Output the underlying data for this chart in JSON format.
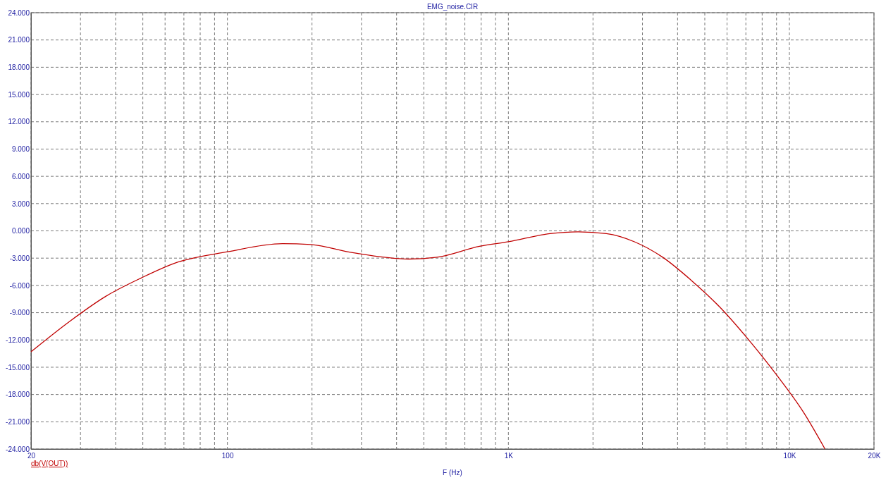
{
  "chart_data": {
    "type": "line",
    "title": "EMG_noise.CIR",
    "xlabel": "F (Hz)",
    "log": "x",
    "grid": true,
    "line_style": "solid",
    "marker": "none",
    "legend": "bottom left",
    "xlim": [
      20,
      20000
    ],
    "ylim": [
      -24,
      24
    ],
    "xticks": [
      20,
      {
        "value": 30,
        "label": null
      },
      {
        "value": 40,
        "label": null
      },
      {
        "value": 50,
        "label": null
      },
      {
        "value": 60,
        "label": null
      },
      {
        "value": 70,
        "label": null
      },
      {
        "value": 80,
        "label": null
      },
      {
        "value": 90,
        "label": null
      },
      100,
      {
        "value": 200,
        "label": null
      },
      {
        "value": 300,
        "label": null
      },
      {
        "value": 400,
        "label": null
      },
      {
        "value": 500,
        "label": null
      },
      {
        "value": 600,
        "label": null
      },
      {
        "value": 700,
        "label": null
      },
      {
        "value": 800,
        "label": null
      },
      {
        "value": 900,
        "label": null
      },
      {
        "value": 1000,
        "label": "1K"
      },
      {
        "value": 2000,
        "label": null
      },
      {
        "value": 3000,
        "label": null
      },
      {
        "value": 4000,
        "label": null
      },
      {
        "value": 5000,
        "label": null
      },
      {
        "value": 6000,
        "label": null
      },
      {
        "value": 7000,
        "label": null
      },
      {
        "value": 8000,
        "label": null
      },
      {
        "value": 9000,
        "label": null
      },
      {
        "value": 10000,
        "label": "10K"
      },
      {
        "value": 20000,
        "label": "20K"
      }
    ],
    "yticks": [
      {
        "value": -24,
        "label": "-24.000"
      },
      {
        "value": -21,
        "label": "-21.000"
      },
      {
        "value": -18,
        "label": "-18.000"
      },
      {
        "value": -15,
        "label": "-15.000"
      },
      {
        "value": -12,
        "label": "-12.000"
      },
      {
        "value": -9,
        "label": "-9.000"
      },
      {
        "value": -6,
        "label": "-6.000"
      },
      {
        "value": -3,
        "label": "-3.000"
      },
      {
        "value": 0,
        "label": "0.000"
      },
      {
        "value": 3,
        "label": "3.000"
      },
      {
        "value": 6,
        "label": "6.000"
      },
      {
        "value": 9,
        "label": "9.000"
      },
      {
        "value": 12,
        "label": "12.000"
      },
      {
        "value": 15,
        "label": "15.000"
      },
      {
        "value": 18,
        "label": "18.000"
      },
      {
        "value": 21,
        "label": "21.000"
      },
      {
        "value": 24,
        "label": "24.000"
      }
    ],
    "series": [
      {
        "name": "db(V(OUT))",
        "color": "#c00000",
        "x": [
          20,
          27.6,
          36.9,
          49.2,
          65.7,
          100,
          157,
          198,
          279,
          442,
          557,
          789,
          1000,
          1406,
          1771,
          2231,
          2810,
          3540,
          4460,
          5620,
          7080,
          8930,
          11250,
          13390
        ],
        "values": [
          -13.3,
          -9.9,
          -7.2,
          -5.2,
          -3.5,
          -2.3,
          -1.4,
          -1.5,
          -2.4,
          -3.1,
          -2.9,
          -1.7,
          -1.2,
          -0.3,
          -0.1,
          -0.3,
          -1.2,
          -2.9,
          -5.4,
          -8.3,
          -11.8,
          -15.7,
          -20.0,
          -24
        ]
      }
    ]
  }
}
